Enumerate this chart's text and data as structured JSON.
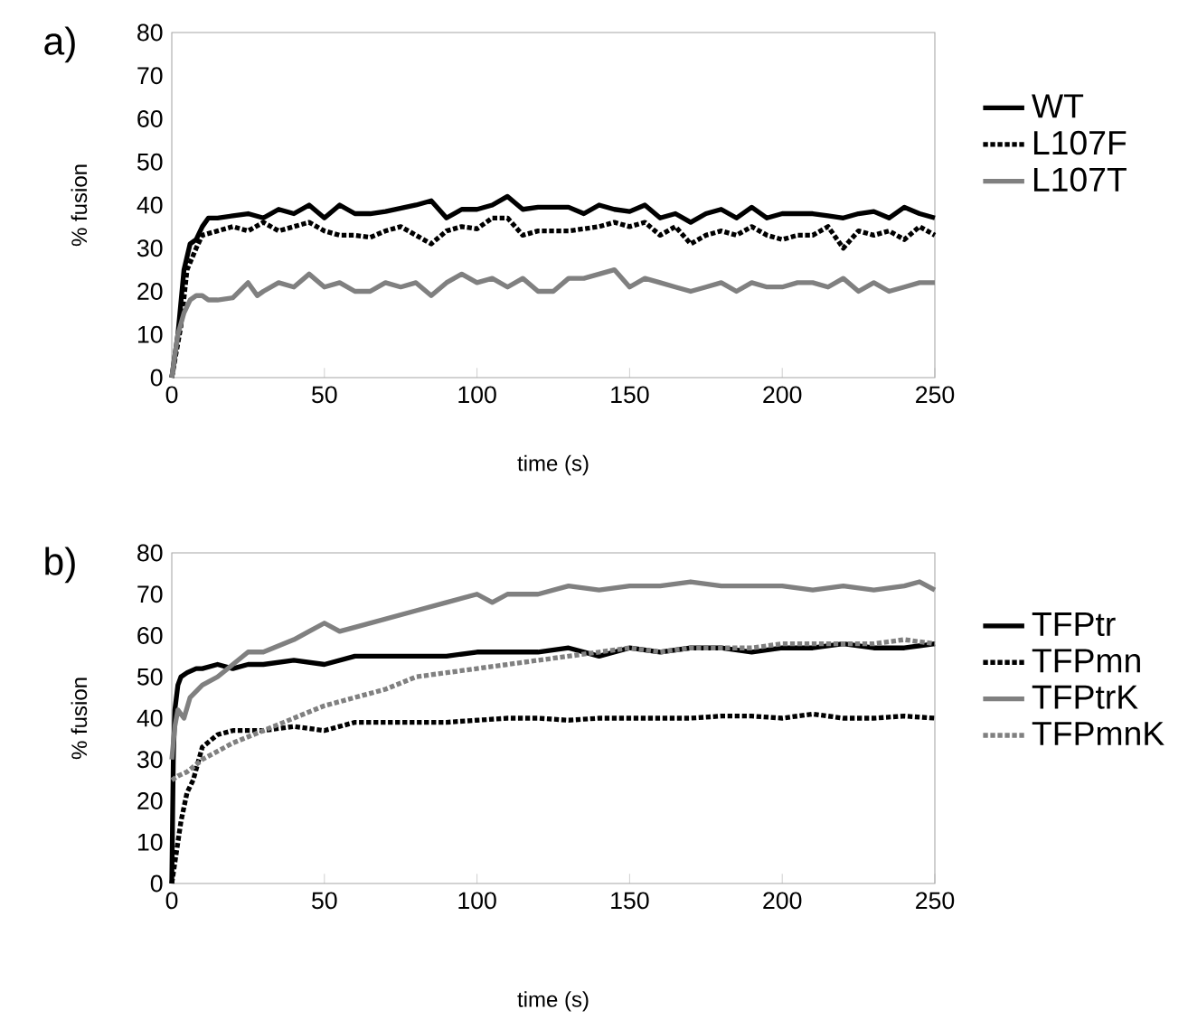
{
  "chart_data": [
    {
      "type": "line",
      "title": "a)",
      "xlabel": "time (s)",
      "ylabel": "% fusion",
      "xlim": [
        0,
        250
      ],
      "ylim": [
        0,
        80
      ],
      "xticks": [
        0,
        50,
        100,
        150,
        200,
        250
      ],
      "yticks": [
        0,
        10,
        20,
        30,
        40,
        50,
        60,
        70,
        80
      ],
      "grid": false,
      "legend": "right",
      "series": [
        {
          "name": "WT",
          "color": "#000000",
          "line_style": "solid",
          "x": [
            0,
            2,
            4,
            6,
            8,
            10,
            12,
            15,
            20,
            25,
            30,
            35,
            40,
            45,
            50,
            55,
            60,
            65,
            70,
            80,
            85,
            90,
            95,
            100,
            105,
            110,
            115,
            120,
            130,
            135,
            140,
            145,
            150,
            155,
            160,
            165,
            170,
            175,
            180,
            185,
            190,
            195,
            200,
            210,
            215,
            220,
            225,
            230,
            235,
            240,
            245,
            250
          ],
          "values": [
            0,
            10,
            25,
            31,
            32,
            35,
            37,
            37,
            37.5,
            38,
            37,
            39,
            38,
            40,
            37,
            40,
            38,
            38,
            38.5,
            40,
            41,
            37,
            39,
            39,
            40,
            42,
            39,
            39.5,
            39.5,
            38,
            40,
            39,
            38.5,
            40,
            37,
            38,
            36,
            38,
            39,
            37,
            39.5,
            37,
            38,
            38,
            37.5,
            37,
            38,
            38.5,
            37,
            39.5,
            38,
            37
          ]
        },
        {
          "name": "L107F",
          "color": "#000000",
          "line_style": "dotted",
          "x": [
            0,
            3,
            5,
            8,
            10,
            15,
            20,
            25,
            30,
            35,
            40,
            45,
            50,
            55,
            60,
            65,
            70,
            75,
            80,
            85,
            90,
            95,
            100,
            105,
            110,
            115,
            120,
            130,
            140,
            145,
            150,
            155,
            160,
            165,
            170,
            175,
            180,
            185,
            190,
            195,
            200,
            205,
            210,
            215,
            220,
            225,
            230,
            235,
            240,
            245,
            250
          ],
          "values": [
            0,
            12,
            25,
            30,
            33,
            34,
            35,
            34,
            36,
            34,
            35,
            36,
            34,
            33,
            33,
            32.5,
            34,
            35,
            33,
            31,
            34,
            35,
            34.5,
            37,
            37,
            33,
            34,
            34,
            35,
            36,
            35,
            36,
            33,
            35,
            31,
            33,
            34,
            33,
            35,
            33,
            32,
            33,
            33,
            35,
            30,
            34,
            33,
            34,
            32,
            35,
            33
          ]
        },
        {
          "name": "L107T",
          "color": "#808080",
          "line_style": "solid",
          "x": [
            0,
            2,
            4,
            6,
            8,
            10,
            12,
            15,
            20,
            25,
            28,
            30,
            35,
            40,
            45,
            50,
            55,
            60,
            65,
            70,
            75,
            80,
            85,
            90,
            95,
            100,
            105,
            110,
            115,
            120,
            125,
            130,
            135,
            140,
            145,
            150,
            155,
            160,
            165,
            170,
            175,
            180,
            185,
            190,
            195,
            200,
            205,
            210,
            215,
            220,
            225,
            230,
            235,
            240,
            245,
            250
          ],
          "values": [
            0,
            10,
            15,
            18,
            19,
            19,
            18,
            18,
            18.5,
            22,
            19,
            20,
            22,
            21,
            24,
            21,
            22,
            20,
            20,
            22,
            21,
            22,
            19,
            22,
            24,
            22,
            23,
            21,
            23,
            20,
            20,
            23,
            23,
            24,
            25,
            21,
            23,
            22,
            21,
            20,
            21,
            22,
            20,
            22,
            21,
            21,
            22,
            22,
            21,
            23,
            20,
            22,
            20,
            21,
            22,
            22
          ]
        }
      ]
    },
    {
      "type": "line",
      "title": "b)",
      "xlabel": "time (s)",
      "ylabel": "% fusion",
      "xlim": [
        0,
        250
      ],
      "ylim": [
        0,
        80
      ],
      "xticks": [
        0,
        50,
        100,
        150,
        200,
        250
      ],
      "yticks": [
        0,
        10,
        20,
        30,
        40,
        50,
        60,
        70,
        80
      ],
      "grid": false,
      "legend": "right",
      "series": [
        {
          "name": "TFPtr",
          "color": "#000000",
          "line_style": "solid",
          "x": [
            0,
            0.5,
            1,
            2,
            3,
            5,
            8,
            10,
            15,
            20,
            25,
            30,
            40,
            50,
            60,
            70,
            80,
            90,
            100,
            110,
            120,
            130,
            140,
            150,
            160,
            170,
            180,
            190,
            200,
            210,
            220,
            230,
            240,
            250
          ],
          "values": [
            0,
            30,
            42,
            48,
            50,
            51,
            52,
            52,
            53,
            52,
            53,
            53,
            54,
            53,
            55,
            55,
            55,
            55,
            56,
            56,
            56,
            57,
            55,
            57,
            56,
            57,
            57,
            56,
            57,
            57,
            58,
            57,
            57,
            58
          ]
        },
        {
          "name": "TFPmn",
          "color": "#000000",
          "line_style": "dotted",
          "x": [
            0,
            1,
            2,
            3,
            5,
            7,
            10,
            15,
            20,
            30,
            40,
            50,
            60,
            70,
            80,
            90,
            100,
            110,
            120,
            130,
            140,
            150,
            160,
            170,
            180,
            190,
            200,
            210,
            220,
            230,
            240,
            250
          ],
          "values": [
            0,
            5,
            10,
            15,
            22,
            25,
            33,
            36,
            37,
            37,
            38,
            37,
            39,
            39,
            39,
            39,
            39.5,
            40,
            40,
            39.5,
            40,
            40,
            40,
            40,
            40.5,
            40.5,
            40,
            41,
            40,
            40,
            40.5,
            40
          ]
        },
        {
          "name": "TFPtrK",
          "color": "#808080",
          "line_style": "solid",
          "x": [
            0,
            1,
            2,
            4,
            6,
            10,
            15,
            20,
            25,
            30,
            40,
            45,
            50,
            55,
            60,
            70,
            80,
            90,
            100,
            105,
            110,
            120,
            130,
            140,
            150,
            160,
            170,
            180,
            190,
            200,
            210,
            220,
            230,
            240,
            245,
            250
          ],
          "values": [
            30,
            38,
            42,
            40,
            45,
            48,
            50,
            53,
            56,
            56,
            59,
            61,
            63,
            61,
            62,
            64,
            66,
            68,
            70,
            68,
            70,
            70,
            72,
            71,
            72,
            72,
            73,
            72,
            72,
            72,
            71,
            72,
            71,
            72,
            73,
            71
          ]
        },
        {
          "name": "TFPmnK",
          "color": "#808080",
          "line_style": "dotted",
          "x": [
            0,
            2,
            5,
            10,
            20,
            30,
            40,
            50,
            60,
            70,
            80,
            90,
            100,
            110,
            120,
            130,
            140,
            150,
            160,
            170,
            180,
            190,
            200,
            210,
            220,
            230,
            240,
            250
          ],
          "values": [
            25,
            26,
            27,
            30,
            34,
            37,
            40,
            43,
            45,
            47,
            50,
            51,
            52,
            53,
            54,
            55,
            56,
            57,
            56,
            57,
            57,
            57,
            58,
            58,
            58,
            58,
            59,
            58
          ]
        }
      ]
    }
  ]
}
